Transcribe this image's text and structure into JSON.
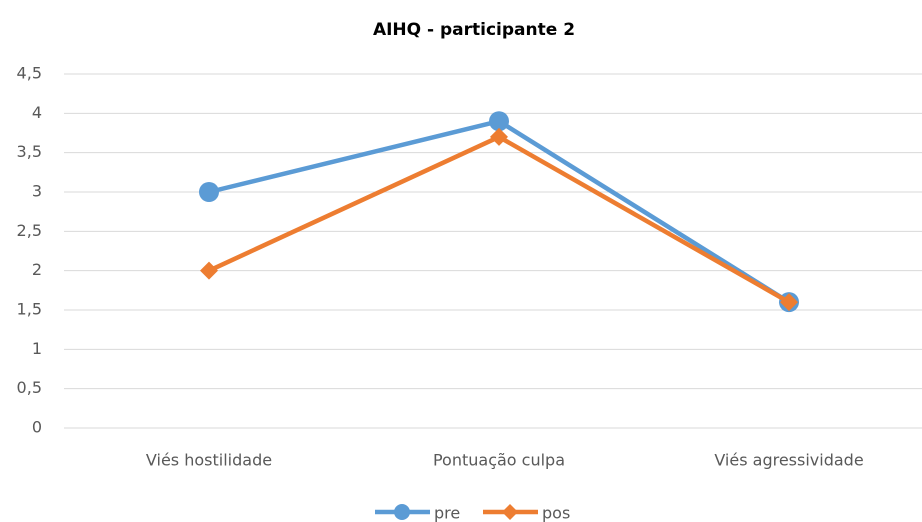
{
  "chart_data": {
    "type": "line",
    "title": "AIHQ - participante 2",
    "categories": [
      "Viés hostilidade",
      "Pontuação culpa",
      "Viés agressividade"
    ],
    "series": [
      {
        "name": "pre",
        "color": "#5b9bd5",
        "marker": "circle",
        "values": [
          3,
          3.9,
          1.6
        ]
      },
      {
        "name": "pos",
        "color": "#ed7d31",
        "marker": "diamond",
        "values": [
          2,
          3.7,
          1.6
        ]
      }
    ],
    "ylim": [
      0,
      4.5
    ],
    "yticks": [
      0,
      {
        "value": 0.5,
        "label": "0,5"
      },
      1,
      {
        "value": 1.5,
        "label": "1,5"
      },
      2,
      {
        "value": 2.5,
        "label": "2,5"
      },
      3,
      {
        "value": 3.5,
        "label": "3,5"
      },
      4,
      {
        "value": 4.5,
        "label": "4,5"
      }
    ],
    "grid": true,
    "legend": "bottom"
  }
}
